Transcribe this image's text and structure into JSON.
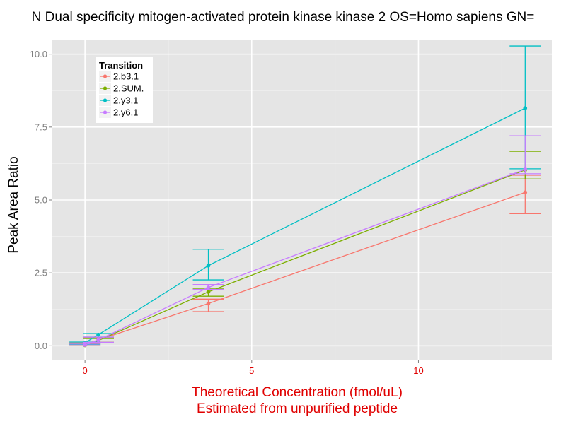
{
  "chart_data": {
    "type": "line",
    "title": "N Dual specificity mitogen-activated protein kinase kinase 2 OS=Homo sapiens GN=",
    "xlabel": [
      "Theoretical Concentration (fmol/uL)",
      "Estimated from unpurified peptide"
    ],
    "ylabel": "Peak Area Ratio",
    "xlim": [
      -1.0,
      14.0
    ],
    "ylim": [
      -0.5,
      10.5
    ],
    "xticks": [
      0,
      5,
      10
    ],
    "xtick_labels": [
      "0",
      "5",
      "10"
    ],
    "yticks": [
      0,
      2.5,
      5,
      7.5,
      10
    ],
    "ytick_labels": [
      "0.0",
      "2.5",
      "5.0",
      "7.5",
      "10.0"
    ],
    "grid": true,
    "legend": {
      "title": "Transition",
      "position": "top-left"
    },
    "series": [
      {
        "name": "2.b3.1",
        "color": "#F8766D",
        "x": [
          0,
          0.4,
          3.7,
          13.2
        ],
        "y": [
          0.05,
          0.2,
          1.45,
          5.26
        ],
        "ymin": [
          0.0,
          0.12,
          1.17,
          4.53
        ],
        "ymax": [
          0.1,
          0.28,
          1.6,
          5.85
        ]
      },
      {
        "name": "2.SUM.",
        "color": "#7CAE00",
        "x": [
          0,
          0.4,
          3.7,
          13.2
        ],
        "y": [
          0.02,
          0.18,
          1.85,
          6.03
        ],
        "ymin": [
          0.0,
          0.12,
          1.7,
          5.72
        ],
        "ymax": [
          0.08,
          0.25,
          1.95,
          6.67
        ]
      },
      {
        "name": "2.y3.1",
        "color": "#00BFC4",
        "x": [
          0,
          0.4,
          3.7,
          13.2
        ],
        "y": [
          0.1,
          0.38,
          2.75,
          8.15
        ],
        "ymin": [
          0.05,
          0.3,
          2.26,
          6.07
        ],
        "ymax": [
          0.13,
          0.42,
          3.31,
          10.28
        ]
      },
      {
        "name": "2.y6.1",
        "color": "#C77CFF",
        "x": [
          0,
          0.4,
          3.7,
          13.2
        ],
        "y": [
          0.03,
          0.2,
          2.0,
          6.05
        ],
        "ymin": [
          0.0,
          0.12,
          1.93,
          5.9
        ],
        "ymax": [
          0.06,
          0.3,
          2.1,
          7.2
        ]
      }
    ]
  }
}
